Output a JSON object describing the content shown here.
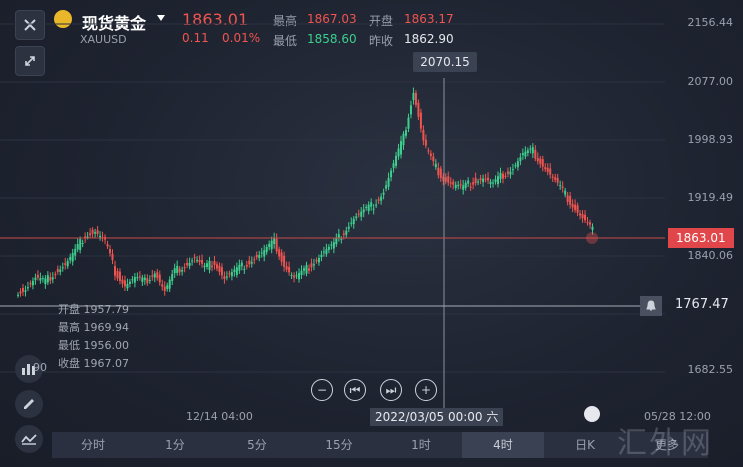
{
  "header": {
    "title": "现货黄金",
    "symbol": "XAUUSD",
    "price": "1863.01",
    "change": "0.11",
    "change_pct": "0.01%",
    "high_label": "最高",
    "high": "1867.03",
    "low_label": "最低",
    "low": "1858.60",
    "open_label": "开盘",
    "open": "1863.17",
    "prev_close_label": "昨收",
    "prev_close": "1862.90"
  },
  "y_axis": {
    "ticks": [
      "2156.44",
      "2077.00",
      "1998.93",
      "1919.49",
      "1840.06",
      "1682.55"
    ]
  },
  "crosshair": {
    "price": "2070.15",
    "date": "2022/03/05 00:00 六"
  },
  "last_price_tag": "1863.01",
  "alert_price": "1767.47",
  "ohlc_box": {
    "open": "开盘 1957.79",
    "high": "最高 1969.94",
    "low": "最低 1956.00",
    "close": "收盘 1967.07",
    "left_label": "90"
  },
  "x_axis": {
    "left": "12/14 04:00",
    "right": "05/28 12:00"
  },
  "timeframes": [
    {
      "label": "分时"
    },
    {
      "label": "1分"
    },
    {
      "label": "5分"
    },
    {
      "label": "15分"
    },
    {
      "label": "1时"
    },
    {
      "label": "4时",
      "active": true
    },
    {
      "label": "日K"
    },
    {
      "label": "更多"
    }
  ],
  "watermark": "汇外网",
  "colors": {
    "up": "#f0544f",
    "down": "#3ccf8e",
    "background": "#1e2330"
  },
  "icons": [
    "close-icon",
    "expand-icon",
    "gold-icon",
    "indicator-icon",
    "pen-icon",
    "trend-icon",
    "bell-icon",
    "zoom-out-icon",
    "zoom-in-icon",
    "prev-icon",
    "next-icon",
    "record-icon"
  ],
  "chart_data": {
    "type": "candlestick",
    "x": [
      "12/14 04:00",
      "2022/03/05 00:00",
      "05/28 12:00"
    ],
    "price_series": [
      1770,
      1775,
      1790,
      1785,
      1800,
      1810,
      1830,
      1855,
      1860,
      1845,
      1800,
      1780,
      1790,
      1785,
      1800,
      1770,
      1800,
      1810,
      1820,
      1805,
      1815,
      1790,
      1800,
      1810,
      1820,
      1830,
      1845,
      1810,
      1790,
      1800,
      1815,
      1830,
      1840,
      1860,
      1880,
      1890,
      1900,
      1920,
      1960,
      2000,
      2070,
      1995,
      1960,
      1940,
      1930,
      1925,
      1935,
      1940,
      1930,
      1945,
      1955,
      1975,
      1980,
      1960,
      1940,
      1920,
      1900,
      1880,
      1863
    ],
    "ylim": [
      1650,
      2170
    ]
  }
}
